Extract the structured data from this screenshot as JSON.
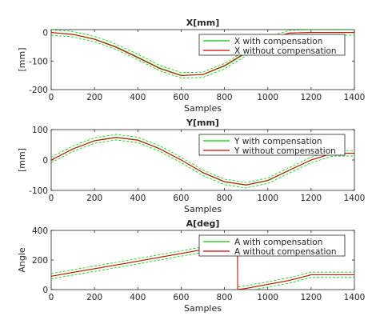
{
  "chart_data": [
    {
      "type": "line",
      "title": "X[mm]",
      "xlabel": "Samples",
      "ylabel": "[mm]",
      "xlim": [
        0,
        1400
      ],
      "ylim": [
        -200,
        10
      ],
      "xticks": [
        "0",
        "200",
        "400",
        "600",
        "800",
        "1000",
        "1200",
        "1400"
      ],
      "yticks": [
        "0",
        "-100",
        "-200"
      ],
      "legend": "top-right",
      "series": [
        {
          "name": "X with compensation",
          "color": "#00cc00",
          "x": [
            0,
            100,
            200,
            300,
            400,
            500,
            600,
            700,
            800,
            900,
            1000,
            1100,
            1200,
            1300,
            1400
          ],
          "y": [
            0,
            -6,
            -23,
            -50,
            -86,
            -124,
            -150,
            -148,
            -118,
            -72,
            -25,
            -2,
            0,
            0,
            0
          ]
        },
        {
          "name": "X without compensation",
          "color": "#d00000",
          "x": [
            0,
            100,
            200,
            300,
            400,
            500,
            600,
            700,
            800,
            900,
            1000,
            1100,
            1200,
            1300,
            1400
          ],
          "y": [
            0,
            -7,
            -24,
            -52,
            -88,
            -126,
            -151,
            -147,
            -116,
            -70,
            -24,
            -2,
            0,
            0,
            0
          ]
        }
      ]
    },
    {
      "type": "line",
      "title": "Y[mm]",
      "xlabel": "Samples",
      "ylabel": "[mm]",
      "xlim": [
        0,
        1400
      ],
      "ylim": [
        -100,
        100
      ],
      "xticks": [
        "0",
        "200",
        "400",
        "600",
        "800",
        "1000",
        "1200",
        "1400"
      ],
      "yticks": [
        "100",
        "0",
        "-100"
      ],
      "legend": "top-right",
      "series": [
        {
          "name": "Y with compensation",
          "color": "#00cc00",
          "x": [
            0,
            100,
            200,
            300,
            400,
            500,
            600,
            700,
            800,
            900,
            1000,
            1100,
            1200,
            1300,
            1400
          ],
          "y": [
            0,
            37,
            64,
            75,
            66,
            38,
            0,
            -42,
            -72,
            -83,
            -68,
            -34,
            0,
            22,
            22
          ]
        },
        {
          "name": "Y without compensation",
          "color": "#d00000",
          "x": [
            0,
            100,
            200,
            300,
            400,
            500,
            600,
            700,
            800,
            900,
            1000,
            1100,
            1200,
            1300,
            1400
          ],
          "y": [
            0,
            36,
            63,
            74,
            65,
            37,
            0,
            -41,
            -71,
            -82,
            -67,
            -33,
            0,
            22,
            22
          ]
        }
      ]
    },
    {
      "type": "line",
      "title": "A[deg]",
      "xlabel": "Samples",
      "ylabel": "Angle",
      "xlim": [
        0,
        1400
      ],
      "ylim": [
        0,
        400
      ],
      "xticks": [
        "0",
        "200",
        "400",
        "600",
        "800",
        "1000",
        "1200",
        "1400"
      ],
      "yticks": [
        "400",
        "200",
        "0"
      ],
      "legend": "top-right",
      "series": [
        {
          "name": "A with compensation",
          "color": "#00cc00",
          "x": [
            0,
            100,
            200,
            300,
            400,
            500,
            600,
            700,
            800,
            860,
            861,
            900,
            1000,
            1100,
            1200,
            1300,
            1400
          ],
          "y": [
            90,
            116,
            141,
            166,
            192,
            218,
            244,
            270,
            296,
            312,
            0,
            8,
            35,
            62,
            100,
            100,
            100
          ]
        },
        {
          "name": "A without compensation",
          "color": "#d00000",
          "x": [
            0,
            100,
            200,
            300,
            400,
            500,
            600,
            700,
            800,
            860,
            861,
            900,
            1000,
            1100,
            1200,
            1300,
            1400
          ],
          "y": [
            90,
            116,
            141,
            166,
            192,
            218,
            244,
            270,
            296,
            312,
            0,
            8,
            35,
            62,
            100,
            100,
            100
          ]
        }
      ]
    }
  ]
}
